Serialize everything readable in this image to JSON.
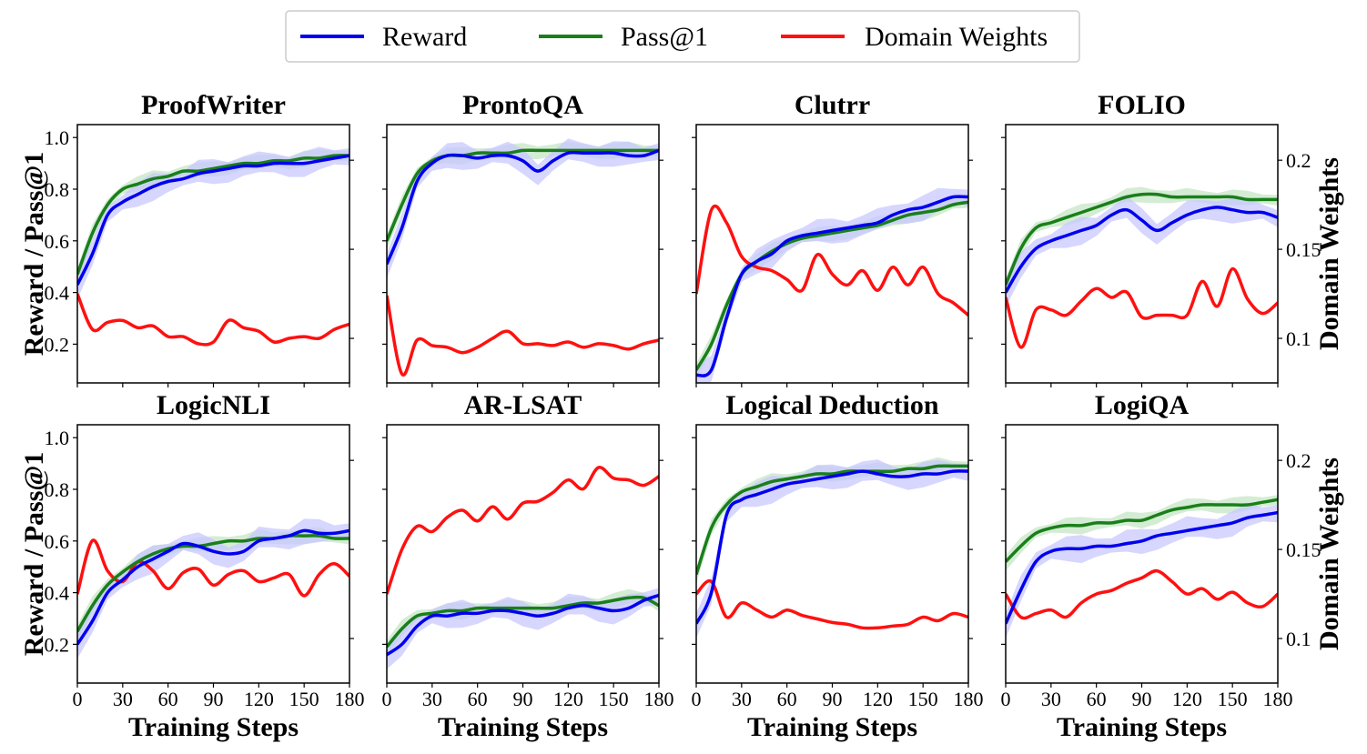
{
  "chart_data": {
    "type": "line",
    "legend": {
      "placement": "top-center",
      "entries": [
        {
          "name": "Reward",
          "color": "#0000ee"
        },
        {
          "name": "Pass@1",
          "color": "#1a7f1a"
        },
        {
          "name": "Domain Weights",
          "color": "#ff1010"
        }
      ]
    },
    "colors": {
      "reward": "#0000ee",
      "reward_band": "#c8c8ff",
      "pass": "#1a7f1a",
      "pass_band": "#c6e6c6",
      "weights": "#ff1010"
    },
    "ylabel_left": "Reward / Pass@1",
    "ylabel_right": "Domain Weights",
    "xlabel": "Training Steps",
    "xlim": [
      0,
      180
    ],
    "ylim_left": [
      0.05,
      1.05
    ],
    "ylim_right": [
      0.075,
      0.22
    ],
    "xticks": [
      0,
      30,
      60,
      90,
      120,
      150,
      180
    ],
    "yticks_left": [
      0.2,
      0.4,
      0.6,
      0.8,
      1.0
    ],
    "ytick_labels_left": [
      "0.2",
      "0.4",
      "0.6",
      "0.8",
      "1.0"
    ],
    "yticks_right": [
      0.1,
      0.15,
      0.2
    ],
    "ytick_labels_right": [
      "0.1",
      "0.15",
      "0.2"
    ],
    "panels": [
      {
        "title": "ProofWriter",
        "x": [
          0,
          10,
          20,
          30,
          40,
          50,
          60,
          70,
          80,
          90,
          100,
          110,
          120,
          130,
          140,
          150,
          160,
          170,
          180
        ],
        "reward": [
          0.43,
          0.55,
          0.7,
          0.75,
          0.78,
          0.81,
          0.83,
          0.84,
          0.86,
          0.87,
          0.88,
          0.89,
          0.89,
          0.9,
          0.9,
          0.9,
          0.91,
          0.92,
          0.93
        ],
        "pass": [
          0.47,
          0.63,
          0.74,
          0.8,
          0.82,
          0.84,
          0.85,
          0.87,
          0.87,
          0.88,
          0.89,
          0.9,
          0.9,
          0.91,
          0.91,
          0.92,
          0.92,
          0.93,
          0.93
        ],
        "weights": [
          0.125,
          0.105,
          0.109,
          0.11,
          0.106,
          0.107,
          0.101,
          0.101,
          0.097,
          0.098,
          0.11,
          0.106,
          0.104,
          0.098,
          0.1,
          0.101,
          0.1,
          0.105,
          0.108
        ]
      },
      {
        "title": "ProntoQA",
        "x": [
          0,
          10,
          20,
          30,
          40,
          50,
          60,
          70,
          80,
          90,
          100,
          110,
          120,
          130,
          140,
          150,
          160,
          170,
          180
        ],
        "reward": [
          0.51,
          0.65,
          0.83,
          0.9,
          0.93,
          0.93,
          0.92,
          0.93,
          0.93,
          0.91,
          0.87,
          0.91,
          0.94,
          0.94,
          0.94,
          0.94,
          0.93,
          0.93,
          0.95
        ],
        "pass": [
          0.6,
          0.74,
          0.86,
          0.91,
          0.93,
          0.93,
          0.94,
          0.94,
          0.94,
          0.95,
          0.95,
          0.95,
          0.95,
          0.95,
          0.95,
          0.95,
          0.95,
          0.95,
          0.95
        ],
        "weights": [
          0.124,
          0.08,
          0.099,
          0.096,
          0.095,
          0.092,
          0.095,
          0.1,
          0.104,
          0.097,
          0.097,
          0.096,
          0.098,
          0.095,
          0.097,
          0.096,
          0.094,
          0.097,
          0.099
        ]
      },
      {
        "title": "Clutrr",
        "x": [
          0,
          10,
          20,
          30,
          40,
          50,
          60,
          70,
          80,
          90,
          100,
          110,
          120,
          130,
          140,
          150,
          160,
          170,
          180
        ],
        "reward": [
          0.08,
          0.1,
          0.3,
          0.47,
          0.52,
          0.55,
          0.6,
          0.62,
          0.63,
          0.64,
          0.65,
          0.66,
          0.67,
          0.7,
          0.72,
          0.73,
          0.75,
          0.77,
          0.77
        ],
        "pass": [
          0.1,
          0.2,
          0.35,
          0.47,
          0.52,
          0.56,
          0.59,
          0.61,
          0.62,
          0.63,
          0.64,
          0.65,
          0.66,
          0.68,
          0.7,
          0.71,
          0.72,
          0.74,
          0.75
        ],
        "weights": [
          0.125,
          0.172,
          0.165,
          0.146,
          0.14,
          0.138,
          0.133,
          0.127,
          0.147,
          0.136,
          0.13,
          0.138,
          0.127,
          0.14,
          0.13,
          0.14,
          0.125,
          0.12,
          0.113
        ]
      },
      {
        "title": "FOLIO",
        "x": [
          0,
          10,
          20,
          30,
          40,
          50,
          60,
          70,
          80,
          90,
          100,
          110,
          120,
          130,
          140,
          150,
          160,
          170,
          180
        ],
        "reward": [
          0.4,
          0.5,
          0.57,
          0.6,
          0.62,
          0.64,
          0.66,
          0.7,
          0.72,
          0.68,
          0.64,
          0.67,
          0.7,
          0.72,
          0.73,
          0.72,
          0.71,
          0.71,
          0.69
        ],
        "pass": [
          0.43,
          0.57,
          0.65,
          0.67,
          0.69,
          0.71,
          0.73,
          0.75,
          0.77,
          0.78,
          0.78,
          0.77,
          0.77,
          0.77,
          0.77,
          0.77,
          0.76,
          0.76,
          0.76
        ],
        "weights": [
          0.123,
          0.095,
          0.116,
          0.116,
          0.113,
          0.121,
          0.128,
          0.123,
          0.126,
          0.112,
          0.113,
          0.113,
          0.113,
          0.132,
          0.118,
          0.139,
          0.122,
          0.114,
          0.12
        ]
      },
      {
        "title": "LogicNLI",
        "x": [
          0,
          10,
          20,
          30,
          40,
          50,
          60,
          70,
          80,
          90,
          100,
          110,
          120,
          130,
          140,
          150,
          160,
          170,
          180
        ],
        "reward": [
          0.2,
          0.29,
          0.4,
          0.45,
          0.5,
          0.53,
          0.56,
          0.59,
          0.58,
          0.56,
          0.55,
          0.56,
          0.6,
          0.61,
          0.62,
          0.64,
          0.63,
          0.63,
          0.64
        ],
        "pass": [
          0.25,
          0.35,
          0.43,
          0.48,
          0.52,
          0.55,
          0.57,
          0.58,
          0.58,
          0.59,
          0.6,
          0.6,
          0.61,
          0.61,
          0.62,
          0.62,
          0.62,
          0.61,
          0.61
        ],
        "weights": [
          0.125,
          0.155,
          0.138,
          0.132,
          0.143,
          0.138,
          0.128,
          0.137,
          0.139,
          0.13,
          0.136,
          0.138,
          0.132,
          0.134,
          0.136,
          0.124,
          0.136,
          0.142,
          0.135
        ]
      },
      {
        "title": "AR-LSAT",
        "x": [
          0,
          10,
          20,
          30,
          40,
          50,
          60,
          70,
          80,
          90,
          100,
          110,
          120,
          130,
          140,
          150,
          160,
          170,
          180
        ],
        "reward": [
          0.16,
          0.2,
          0.27,
          0.31,
          0.31,
          0.32,
          0.32,
          0.33,
          0.33,
          0.32,
          0.31,
          0.32,
          0.34,
          0.35,
          0.34,
          0.33,
          0.34,
          0.37,
          0.39
        ],
        "pass": [
          0.19,
          0.26,
          0.31,
          0.32,
          0.33,
          0.33,
          0.34,
          0.34,
          0.34,
          0.34,
          0.34,
          0.34,
          0.35,
          0.36,
          0.36,
          0.37,
          0.38,
          0.38,
          0.35
        ],
        "weights": [
          0.125,
          0.15,
          0.163,
          0.16,
          0.168,
          0.172,
          0.166,
          0.174,
          0.167,
          0.176,
          0.177,
          0.182,
          0.189,
          0.184,
          0.196,
          0.19,
          0.189,
          0.186,
          0.191
        ]
      },
      {
        "title": "Logical Deduction",
        "x": [
          0,
          10,
          20,
          30,
          40,
          50,
          60,
          70,
          80,
          90,
          100,
          110,
          120,
          130,
          140,
          150,
          160,
          170,
          180
        ],
        "reward": [
          0.28,
          0.4,
          0.7,
          0.76,
          0.78,
          0.8,
          0.82,
          0.83,
          0.84,
          0.85,
          0.86,
          0.87,
          0.86,
          0.85,
          0.85,
          0.86,
          0.86,
          0.87,
          0.87
        ],
        "pass": [
          0.47,
          0.65,
          0.74,
          0.79,
          0.81,
          0.83,
          0.84,
          0.85,
          0.86,
          0.86,
          0.87,
          0.87,
          0.87,
          0.87,
          0.88,
          0.88,
          0.89,
          0.89,
          0.89
        ],
        "weights": [
          0.125,
          0.132,
          0.112,
          0.12,
          0.116,
          0.112,
          0.116,
          0.113,
          0.111,
          0.109,
          0.108,
          0.106,
          0.106,
          0.107,
          0.108,
          0.112,
          0.11,
          0.114,
          0.112
        ]
      },
      {
        "title": "LogiQA",
        "x": [
          0,
          10,
          20,
          30,
          40,
          50,
          60,
          70,
          80,
          90,
          100,
          110,
          120,
          130,
          140,
          150,
          160,
          170,
          180
        ],
        "reward": [
          0.28,
          0.41,
          0.52,
          0.56,
          0.57,
          0.57,
          0.58,
          0.58,
          0.59,
          0.6,
          0.62,
          0.63,
          0.64,
          0.65,
          0.66,
          0.67,
          0.69,
          0.7,
          0.71
        ],
        "pass": [
          0.52,
          0.58,
          0.63,
          0.65,
          0.66,
          0.66,
          0.67,
          0.67,
          0.68,
          0.68,
          0.7,
          0.72,
          0.73,
          0.74,
          0.74,
          0.74,
          0.74,
          0.75,
          0.76
        ],
        "weights": [
          0.125,
          0.112,
          0.114,
          0.116,
          0.112,
          0.12,
          0.125,
          0.127,
          0.131,
          0.134,
          0.138,
          0.132,
          0.125,
          0.128,
          0.122,
          0.126,
          0.12,
          0.118,
          0.125
        ]
      }
    ]
  }
}
